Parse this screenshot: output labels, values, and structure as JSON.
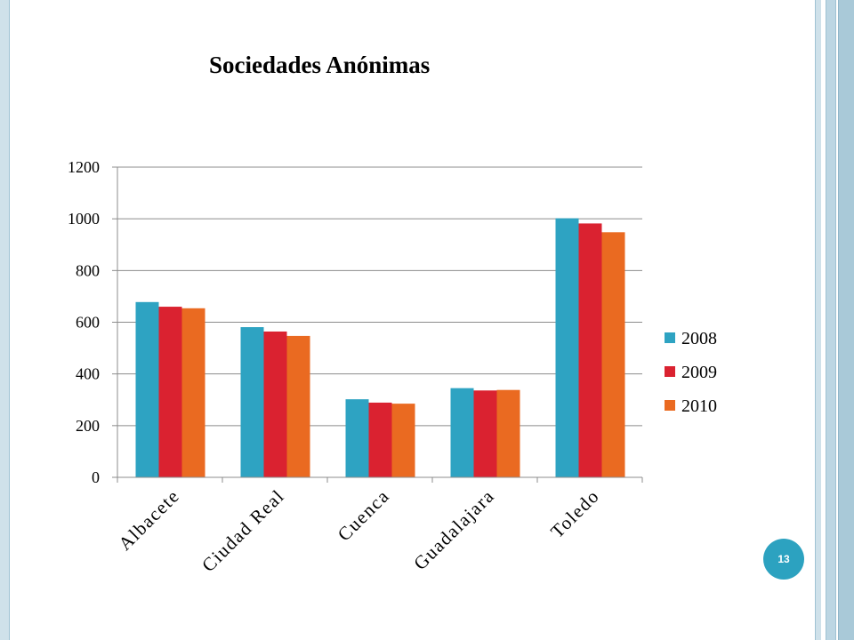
{
  "slide": {
    "page_number": "13"
  },
  "colors": {
    "frame_light": "#cfe1ea",
    "frame_mid": "#a9c9d8",
    "frame_dark": "#8fb6c9",
    "badge": "#2ca2c0"
  },
  "chart_data": {
    "type": "bar",
    "title": "Sociedades Anónimas",
    "categories": [
      "Albacete",
      "Ciudad Real",
      "Cuenca",
      "Guadalajara",
      "Toledo"
    ],
    "series": [
      {
        "name": "2008",
        "color": "#2ea3c2",
        "values": [
          678,
          581,
          302,
          345,
          1002
        ]
      },
      {
        "name": "2009",
        "color": "#da2230",
        "values": [
          660,
          564,
          289,
          336,
          982
        ]
      },
      {
        "name": "2010",
        "color": "#ea6a21",
        "values": [
          654,
          547,
          285,
          338,
          948
        ]
      }
    ],
    "ylim": [
      0,
      1200
    ],
    "yticks": [
      "0",
      "200",
      "400",
      "600",
      "800",
      "1000",
      "1200"
    ],
    "grid": true,
    "legend_position": "right"
  }
}
